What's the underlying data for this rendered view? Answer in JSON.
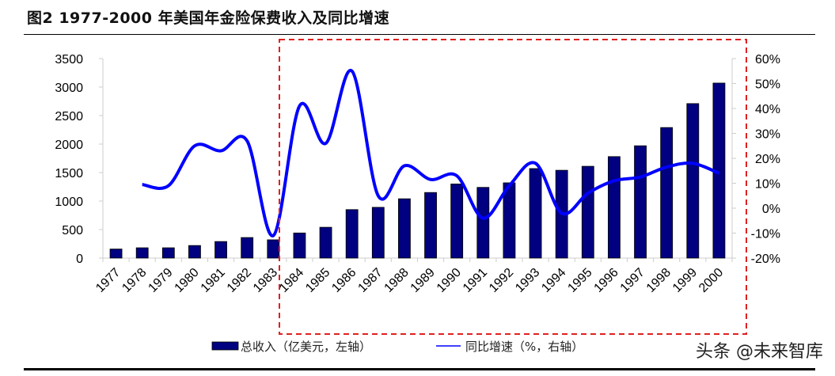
{
  "title": "图2   1977-2000 年美国年金险保费收入及同比增速",
  "watermark": "头条 @未来智库",
  "chart_data": {
    "type": "bar+line",
    "title": "图2   1977-2000 年美国年金险保费收入及同比增速",
    "categories": [
      "1977",
      "1978",
      "1979",
      "1980",
      "1981",
      "1982",
      "1983",
      "1984",
      "1985",
      "1986",
      "1987",
      "1988",
      "1989",
      "1990",
      "1991",
      "1992",
      "1993",
      "1994",
      "1995",
      "1996",
      "1997",
      "1998",
      "1999",
      "2000"
    ],
    "series": [
      {
        "name": "总收入（亿美元，左轴）",
        "type": "bar",
        "axis": "left",
        "color": "#000080",
        "values": [
          158,
          180,
          180,
          220,
          290,
          360,
          320,
          440,
          540,
          850,
          890,
          1040,
          1150,
          1300,
          1240,
          1320,
          1570,
          1540,
          1610,
          1780,
          1970,
          2290,
          2710,
          3070
        ]
      },
      {
        "name": "同比增速（%，右轴）",
        "type": "line",
        "axis": "right",
        "color": "#0000ff",
        "values": [
          null,
          9.5,
          9,
          25,
          23,
          27,
          -11,
          41,
          26,
          55,
          5,
          17,
          11.5,
          13,
          -4,
          9,
          18,
          -2,
          6,
          11,
          12.5,
          16.5,
          18,
          14
        ]
      }
    ],
    "left_axis": {
      "ylim": [
        0,
        3500
      ],
      "ticks": [
        "0",
        "500",
        "1000",
        "1500",
        "2000",
        "2500",
        "3000",
        "3500"
      ]
    },
    "right_axis": {
      "ylim": [
        -20,
        60
      ],
      "ticks": [
        "-20%",
        "-10%",
        "0%",
        "10%",
        "20%",
        "30%",
        "40%",
        "50%",
        "60%"
      ]
    },
    "grid": false,
    "legend": "bottom",
    "highlight_box": {
      "from": "1984",
      "to": "2000",
      "color": "#e02020",
      "style": "dashed"
    }
  }
}
